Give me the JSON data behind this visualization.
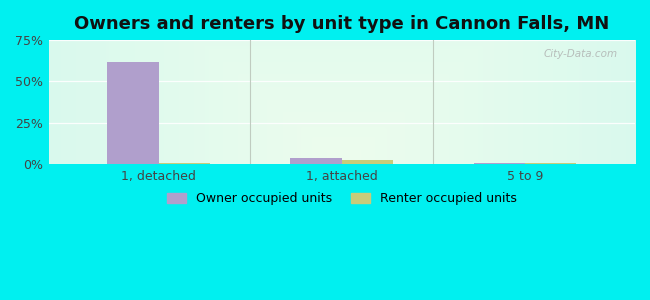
{
  "title": "Owners and renters by unit type in Cannon Falls, MN",
  "categories": [
    "1, detached",
    "1, attached",
    "5 to 9"
  ],
  "owner_values": [
    62.0,
    4.0,
    0.8
  ],
  "renter_values": [
    1.0,
    2.8,
    0.6
  ],
  "owner_color": "#b09fcc",
  "renter_color": "#c8cc7a",
  "ylim": [
    0,
    75
  ],
  "yticks": [
    0,
    25,
    50,
    75
  ],
  "yticklabels": [
    "0%",
    "25%",
    "50%",
    "75%"
  ],
  "bar_width": 0.28,
  "outer_bg": "#00f0f0",
  "watermark": "City-Data.com",
  "legend_owner": "Owner occupied units",
  "legend_renter": "Renter occupied units",
  "title_fontsize": 13,
  "tick_fontsize": 9,
  "legend_fontsize": 9,
  "grid_color": "#e0e8e0",
  "separator_color": "#c0ccc0"
}
